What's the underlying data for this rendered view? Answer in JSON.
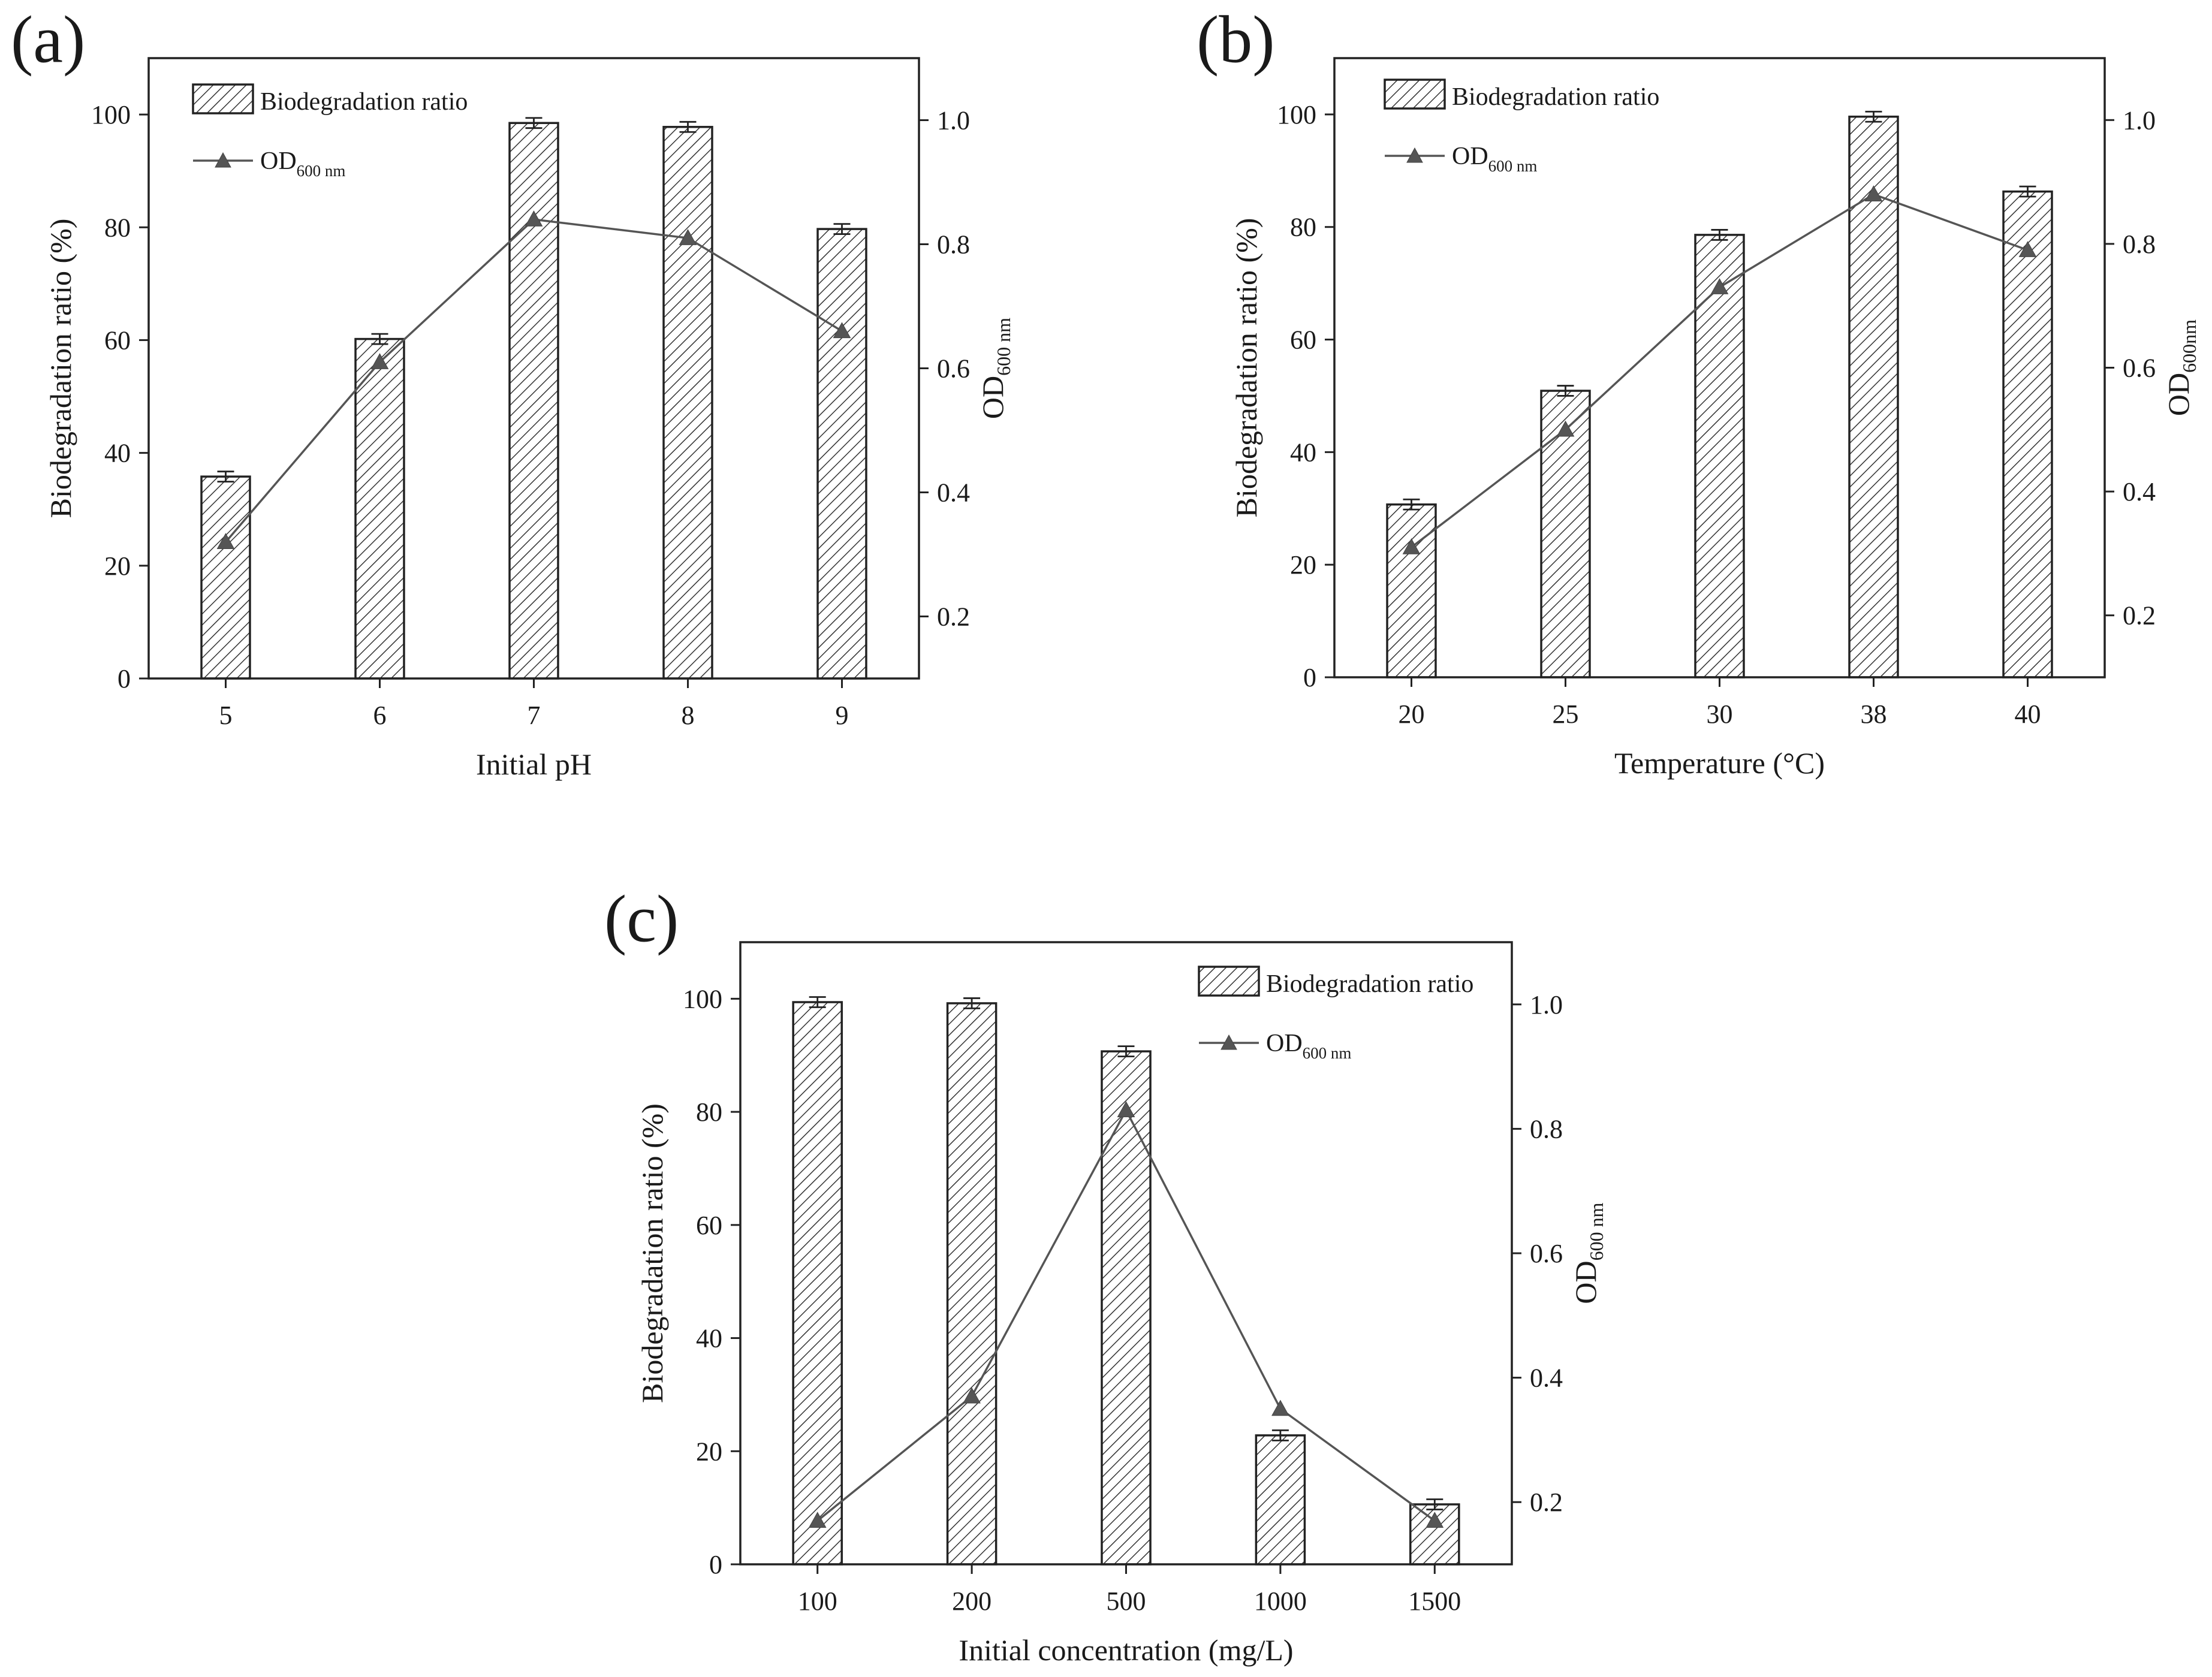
{
  "chart_data": [
    {
      "type": "bar",
      "panel_label": "(a)",
      "xlabel": "Initial pH",
      "ylabel": "Biodegradation ratio (%)",
      "y2label": "OD",
      "y2label_sub": "600 nm",
      "categories": [
        "5",
        "6",
        "7",
        "8",
        "9"
      ],
      "ylim": [
        0,
        110
      ],
      "yticks": [
        0,
        20,
        40,
        60,
        80,
        100
      ],
      "y2lim": [
        0.1,
        1.1
      ],
      "y2ticks": [
        0.2,
        0.4,
        0.6,
        0.8,
        1.0
      ],
      "series": [
        {
          "name": "Biodegradation ratio",
          "type": "bar",
          "axis": "left",
          "values": [
            35.8,
            60.2,
            98.5,
            97.8,
            79.7
          ],
          "errors": [
            0.9,
            0.9,
            0.9,
            0.9,
            0.9
          ]
        },
        {
          "name": "OD",
          "name_sub": "600 nm",
          "type": "line",
          "axis": "right",
          "values": [
            0.32,
            0.61,
            0.84,
            0.81,
            0.66
          ]
        }
      ],
      "legend": [
        {
          "label": "Biodegradation ratio",
          "sub": ""
        },
        {
          "label": "OD",
          "sub": "600 nm"
        }
      ]
    },
    {
      "type": "bar",
      "panel_label": "(b)",
      "xlabel": "Temperature (°C)",
      "ylabel": "Biodegradation ratio (%)",
      "y2label": "OD",
      "y2label_sub": "600nm",
      "categories": [
        "20",
        "25",
        "30",
        "38",
        "40"
      ],
      "ylim": [
        0,
        110
      ],
      "yticks": [
        0,
        20,
        40,
        60,
        80,
        100
      ],
      "y2lim": [
        0.1,
        1.1
      ],
      "y2ticks": [
        0.2,
        0.4,
        0.6,
        0.8,
        1.0
      ],
      "series": [
        {
          "name": "Biodegradation ratio",
          "type": "bar",
          "axis": "left",
          "values": [
            30.7,
            50.9,
            78.6,
            99.6,
            86.3
          ],
          "errors": [
            0.9,
            0.9,
            0.9,
            0.9,
            0.9
          ]
        },
        {
          "name": "OD",
          "name_sub": "600 nm",
          "type": "line",
          "axis": "right",
          "values": [
            0.31,
            0.5,
            0.73,
            0.88,
            0.79
          ]
        }
      ],
      "legend": [
        {
          "label": "Biodegradation ratio",
          "sub": ""
        },
        {
          "label": "OD",
          "sub": "600 nm"
        }
      ]
    },
    {
      "type": "bar",
      "panel_label": "(c)",
      "xlabel": "Initial concentration (mg/L)",
      "ylabel": "Biodegradation ratio (%)",
      "y2label": "OD",
      "y2label_sub": "600 nm",
      "categories": [
        "100",
        "200",
        "500",
        "1000",
        "1500"
      ],
      "ylim": [
        0,
        110
      ],
      "yticks": [
        0,
        20,
        40,
        60,
        80,
        100
      ],
      "y2lim": [
        0.1,
        1.1
      ],
      "y2ticks": [
        0.2,
        0.4,
        0.6,
        0.8,
        1.0
      ],
      "series": [
        {
          "name": "Biodegradation ratio",
          "type": "bar",
          "axis": "left",
          "values": [
            99.4,
            99.2,
            90.7,
            22.8,
            10.6
          ],
          "errors": [
            0.9,
            0.9,
            0.9,
            0.9,
            0.9
          ]
        },
        {
          "name": "OD",
          "name_sub": "600 nm",
          "type": "line",
          "axis": "right",
          "values": [
            0.17,
            0.37,
            0.83,
            0.35,
            0.17
          ]
        }
      ],
      "legend": [
        {
          "label": "Biodegradation ratio",
          "sub": ""
        },
        {
          "label": "OD",
          "sub": "600 nm"
        }
      ]
    }
  ]
}
